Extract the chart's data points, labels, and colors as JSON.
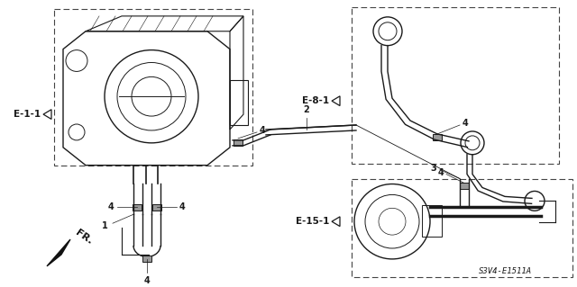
{
  "bg_color": "#ffffff",
  "lc": "#1a1a1a",
  "diagram_code": "S3V4-E1511A",
  "figsize": [
    6.4,
    3.19
  ],
  "dpi": 100,
  "xlim": [
    0,
    640
  ],
  "ylim": [
    0,
    319
  ],
  "e11_label": "E-1-1",
  "e81_label": "E-8-1",
  "e151_label": "E-15-1",
  "fr_label": "FR.",
  "labels_1": "1",
  "labels_2": "2",
  "labels_3": "3",
  "labels_4": "4"
}
